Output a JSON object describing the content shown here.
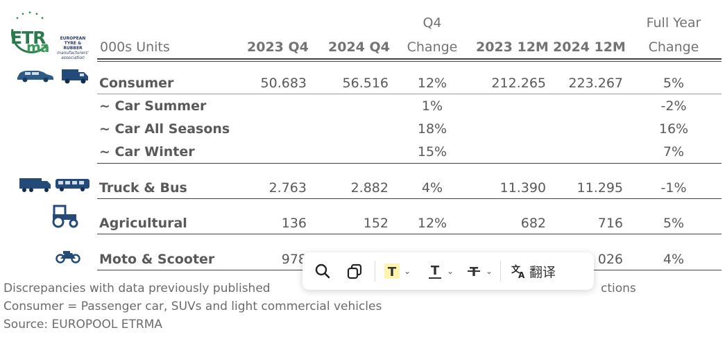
{
  "logo": {
    "letters": "ETRma",
    "subtitle_lines": [
      "EUROPEAN",
      "TYRE & RUBBER",
      "manufacturers'",
      "association"
    ]
  },
  "header": {
    "units_label": "000s Units",
    "col_2023q4": "2023 Q4",
    "col_2024q4": "2024 Q4",
    "col_q4change_top": "Q4",
    "col_q4change_bottom": "Change",
    "col_2023_12m": "2023 12M",
    "col_2024_12m": "2024 12M",
    "col_fy_top": "Full Year",
    "col_fy_bottom": "Change"
  },
  "rows": [
    {
      "label": "Consumer",
      "v2023q4": "50.683",
      "v2024q4": "56.516",
      "q4chg": "12%",
      "v2023_12m": "212.265",
      "v2024_12m": "223.267",
      "fychg": "5%",
      "icons": [
        "car-icon",
        "van-icon"
      ]
    },
    {
      "label": "~ Car Summer",
      "v2023q4": "",
      "v2024q4": "",
      "q4chg": "1%",
      "v2023_12m": "",
      "v2024_12m": "",
      "fychg": "-2%"
    },
    {
      "label": "~ Car All Seasons",
      "v2023q4": "",
      "v2024q4": "",
      "q4chg": "18%",
      "v2023_12m": "",
      "v2024_12m": "",
      "fychg": "16%"
    },
    {
      "label": "~ Car Winter",
      "v2023q4": "",
      "v2024q4": "",
      "q4chg": "15%",
      "v2023_12m": "",
      "v2024_12m": "",
      "fychg": "7%"
    },
    {
      "label": "Truck & Bus",
      "v2023q4": "2.763",
      "v2024q4": "2.882",
      "q4chg": "4%",
      "v2023_12m": "11.390",
      "v2024_12m": "11.295",
      "fychg": "-1%",
      "icons": [
        "truck-icon",
        "bus-icon"
      ]
    },
    {
      "label": "Agricultural",
      "v2023q4": "136",
      "v2024q4": "152",
      "q4chg": "12%",
      "v2023_12m": "682",
      "v2024_12m": "716",
      "fychg": "5%",
      "icons": [
        "tractor-icon"
      ]
    },
    {
      "label": "Moto & Scooter",
      "v2023q4": "978",
      "v2024q4": "",
      "q4chg": "",
      "v2023_12m": "",
      "v2024_12m": "026",
      "fychg": "4%",
      "icons": [
        "motorcycle-icon"
      ]
    }
  ],
  "footnotes": {
    "line1_left": "Discrepancies with data previously published",
    "line1_right": "ctions",
    "line2": "Consumer = Passenger car, SUVs and light commercial vehicles",
    "line3": "Source: EUROPOOL ETRMA"
  },
  "toolbar": {
    "search_icon": "search-icon",
    "copy_icon": "copy-icon",
    "translate_label": "翻译",
    "highlight_color": "#fff3b0"
  }
}
